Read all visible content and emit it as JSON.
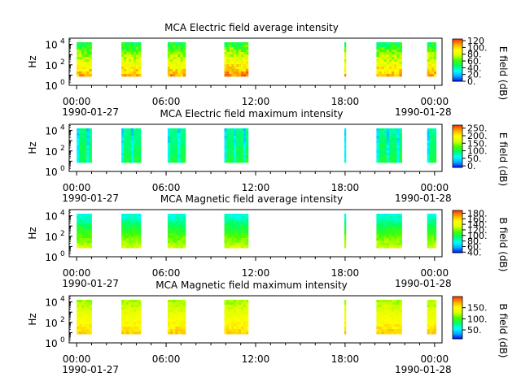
{
  "chart_data": [
    {
      "type": "heatmap",
      "title": "MCA  Electric field average intensity",
      "ylabel": "Hz",
      "y_scale": "log",
      "y_range_exp": [
        0,
        4.6
      ],
      "y_ticks": [
        {
          "exp": 0,
          "label": "10",
          "sup": "0"
        },
        {
          "exp": 2,
          "label": "10",
          "sup": "2"
        },
        {
          "exp": 4,
          "label": "10",
          "sup": "4"
        }
      ],
      "colorbar_label": "E field (dB)",
      "colorbar_range": [
        0,
        125
      ],
      "colorbar_ticks": [
        "0.",
        "20.",
        "40.",
        "60.",
        "80.",
        "100.",
        "120"
      ],
      "colorbar_tick_values": [
        0,
        20,
        40,
        60,
        80,
        100,
        120
      ],
      "profile": "e_avg"
    },
    {
      "type": "heatmap",
      "title": "MCA  Electric field maximum intensity",
      "ylabel": "Hz",
      "y_scale": "log",
      "y_range_exp": [
        0,
        4.6
      ],
      "y_ticks": [
        {
          "exp": 0,
          "label": "10",
          "sup": "0"
        },
        {
          "exp": 2,
          "label": "10",
          "sup": "2"
        },
        {
          "exp": 4,
          "label": "10",
          "sup": "4"
        }
      ],
      "colorbar_label": "E field (dB)",
      "colorbar_range": [
        -10,
        270
      ],
      "colorbar_ticks": [
        "0.",
        "50.",
        "100.",
        "150.",
        "200.",
        "250."
      ],
      "colorbar_tick_values": [
        0,
        50,
        100,
        150,
        200,
        250
      ],
      "profile": "e_max"
    },
    {
      "type": "heatmap",
      "title": "MCA  Magnetic field average intensity",
      "ylabel": "Hz",
      "y_scale": "log",
      "y_range_exp": [
        0,
        4.6
      ],
      "y_ticks": [
        {
          "exp": 0,
          "label": "10",
          "sup": "0"
        },
        {
          "exp": 2,
          "label": "10",
          "sup": "2"
        },
        {
          "exp": 4,
          "label": "10",
          "sup": "4"
        }
      ],
      "colorbar_label": "B field (dB)",
      "colorbar_range": [
        38,
        190
      ],
      "colorbar_ticks": [
        "40.",
        "60.",
        "80.",
        "100.",
        "120.",
        "140.",
        "160.",
        "180."
      ],
      "colorbar_tick_values": [
        40,
        60,
        80,
        100,
        120,
        140,
        160,
        180
      ],
      "profile": "b_avg"
    },
    {
      "type": "heatmap",
      "title": "MCA  Magnetic field maximum intensity",
      "ylabel": "Hz",
      "y_scale": "log",
      "y_range_exp": [
        0,
        4.6
      ],
      "y_ticks": [
        {
          "exp": 0,
          "label": "10",
          "sup": "0"
        },
        {
          "exp": 2,
          "label": "10",
          "sup": "2"
        },
        {
          "exp": 4,
          "label": "10",
          "sup": "4"
        }
      ],
      "colorbar_label": "B field (dB)",
      "colorbar_range": [
        10,
        200
      ],
      "colorbar_ticks": [
        "50.",
        "100.",
        "150."
      ],
      "colorbar_tick_values": [
        50,
        100,
        150
      ],
      "profile": "b_max"
    }
  ],
  "time_axis": {
    "range_hours": [
      -0.5,
      24.5
    ],
    "major_hours": [
      0,
      6,
      12,
      18,
      24
    ],
    "tick_labels": [
      "00:00",
      "06:00",
      "12:00",
      "18:00",
      "00:00"
    ],
    "date_labels": [
      {
        "hour": 0,
        "text": "1990-01-27"
      },
      {
        "hour": 24,
        "text": "1990-01-28"
      }
    ]
  },
  "data_segments_hours": [
    [
      0.0,
      1.0
    ],
    [
      3.0,
      4.3
    ],
    [
      6.1,
      7.3
    ],
    [
      9.9,
      11.5
    ],
    [
      17.95,
      18.05
    ],
    [
      20.1,
      21.8
    ],
    [
      23.5,
      24.1
    ]
  ],
  "colormap": [
    "#0000ff",
    "#00aaff",
    "#00ffff",
    "#00ff66",
    "#44ff00",
    "#ddff00",
    "#ffff00",
    "#ffaa00",
    "#ff3300"
  ]
}
